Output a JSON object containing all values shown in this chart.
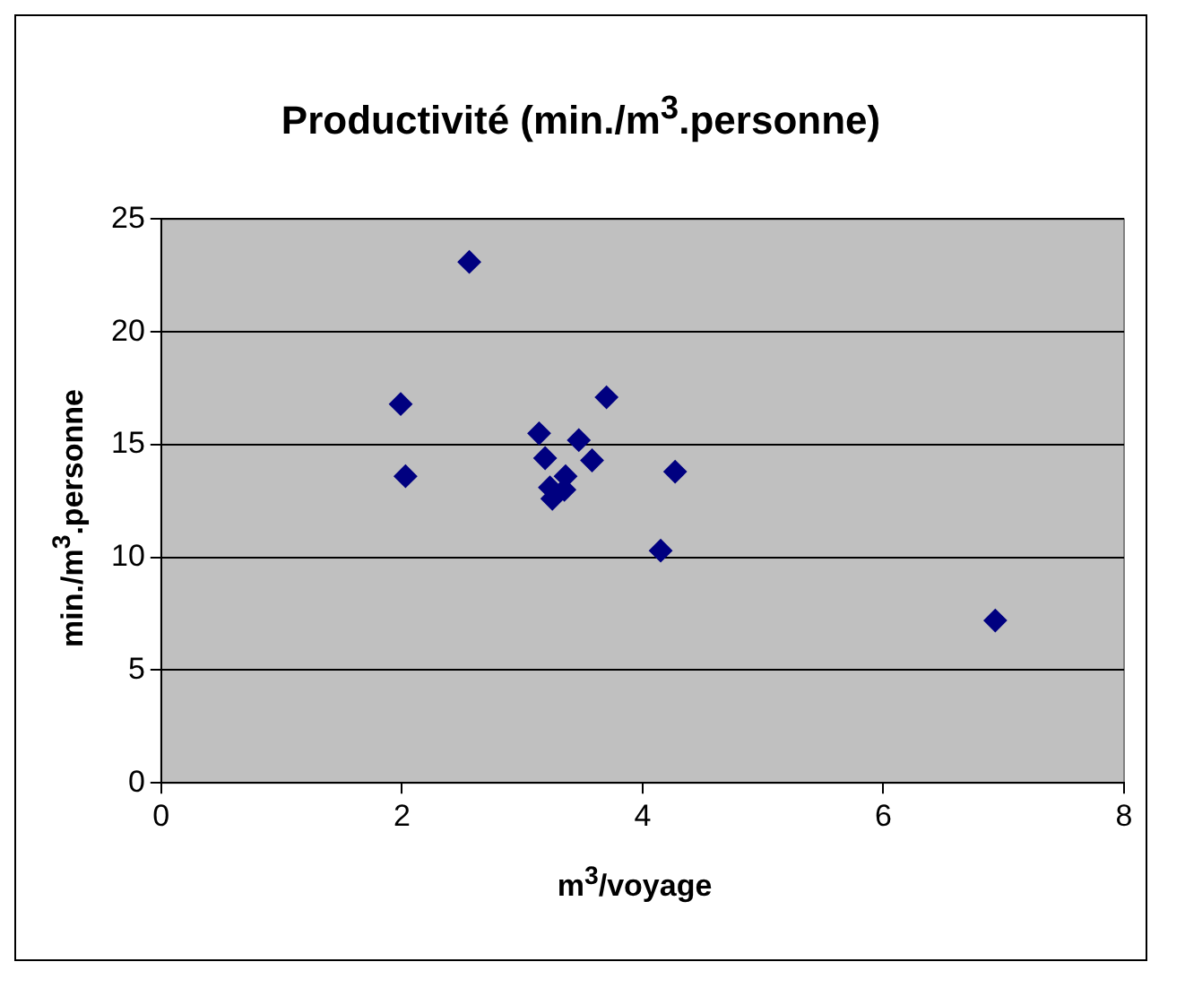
{
  "chart_data": {
    "type": "scatter",
    "title": "Productivité (min./m$^{3}$.personne)",
    "xlabel": "m$^{3}$/voyage",
    "ylabel": "min./m$^{3}$.personne",
    "x": [
      2.56,
      1.99,
      2.03,
      3.14,
      3.19,
      3.47,
      3.7,
      3.58,
      3.36,
      3.23,
      3.25,
      3.35,
      4.27,
      4.15,
      6.93
    ],
    "series": [
      {
        "color": "#000080",
        "values": [
          23.1,
          16.8,
          13.6,
          15.5,
          14.4,
          15.2,
          17.1,
          14.3,
          13.6,
          13.1,
          12.6,
          13.0,
          13.8,
          10.3,
          7.2
        ]
      }
    ],
    "xlim": [
      0,
      8
    ],
    "xticks": [
      0,
      2,
      4,
      6,
      8
    ],
    "ylim": [
      0,
      25
    ],
    "yticks": [
      0,
      5,
      10,
      15,
      20,
      25
    ],
    "grid": "y",
    "legend": false,
    "marker": "diamond"
  }
}
